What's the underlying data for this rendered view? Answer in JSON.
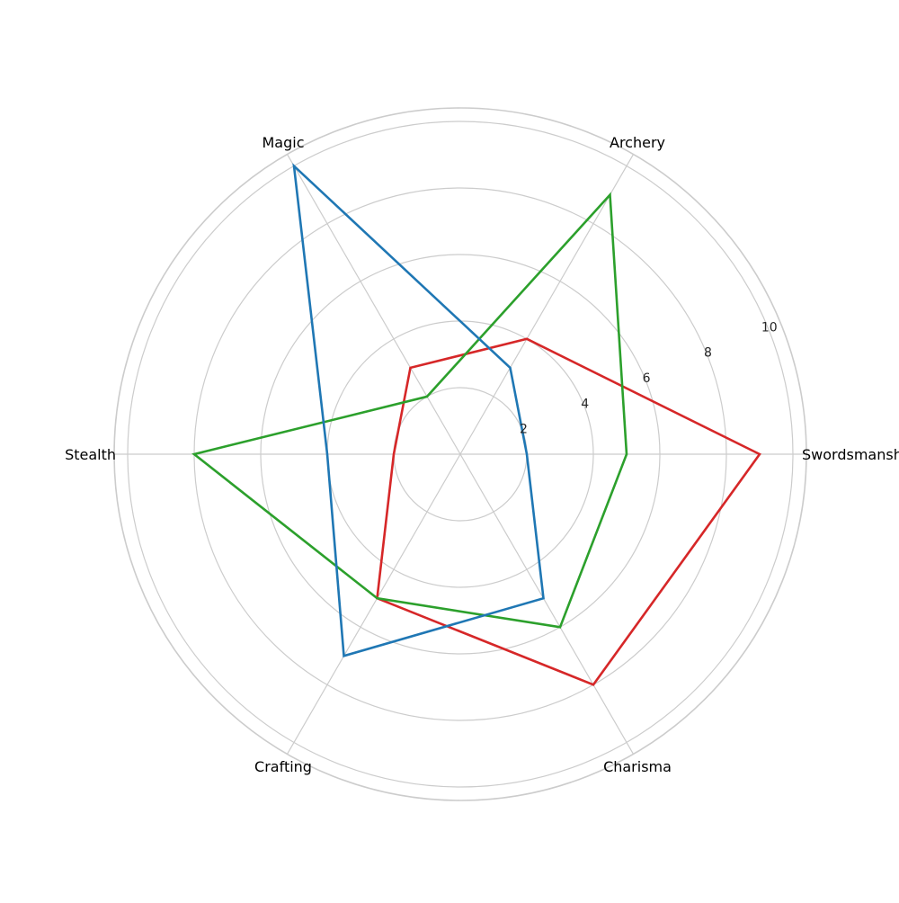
{
  "chart_data": {
    "type": "radar",
    "categories": [
      "Swordsmanship",
      "Archery",
      "Magic",
      "Stealth",
      "Crafting",
      "Charisma"
    ],
    "series": [
      {
        "color": "#d62728",
        "values": [
          9,
          4,
          3,
          2,
          5,
          8
        ]
      },
      {
        "color": "#2ca02c",
        "values": [
          5,
          9,
          2,
          8,
          5,
          6
        ]
      },
      {
        "color": "#1f77b4",
        "values": [
          2,
          3,
          10,
          4,
          7,
          5
        ]
      }
    ],
    "rlim": [
      0,
      10
    ],
    "rticks": [
      "2",
      "4",
      "6",
      "8",
      "10"
    ],
    "grid": true,
    "legend": "none"
  }
}
